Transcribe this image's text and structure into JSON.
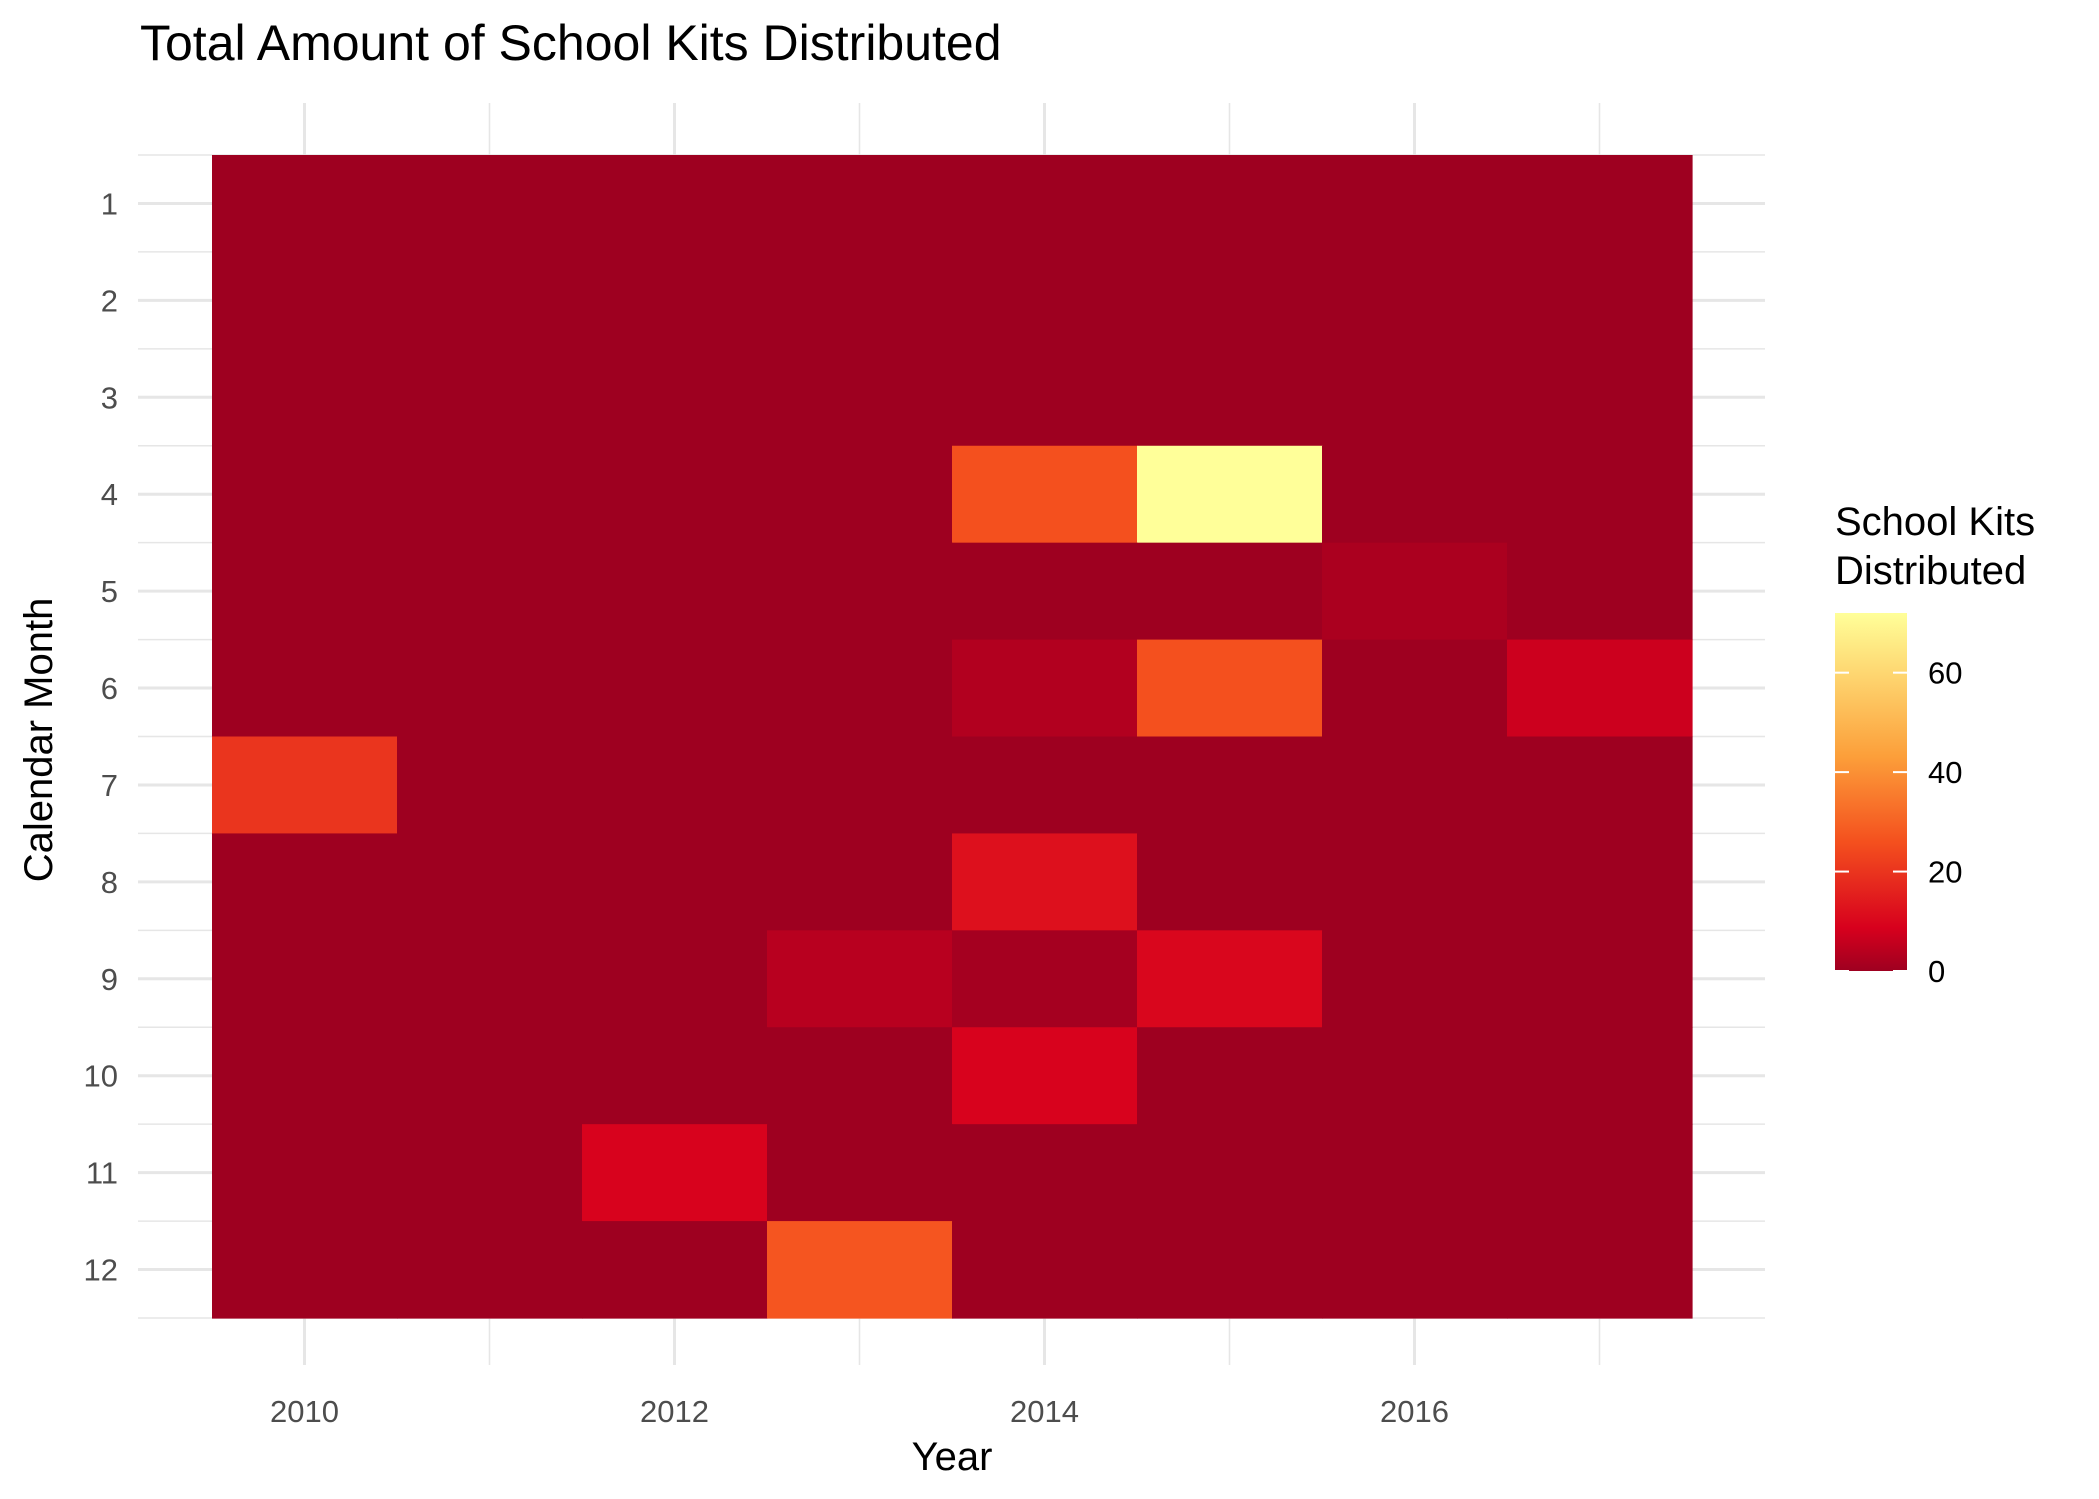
{
  "chart_data": {
    "type": "heatmap",
    "title": "Total Amount of School Kits Distributed",
    "xlabel": "Year",
    "ylabel": "Calendar Month",
    "x_ticks": [
      "2010",
      "2012",
      "2014",
      "2016"
    ],
    "x_tick_values": [
      2010,
      2012,
      2014,
      2016
    ],
    "years": [
      2010,
      2011,
      2012,
      2013,
      2014,
      2015,
      2016,
      2017
    ],
    "months": [
      1,
      2,
      3,
      4,
      5,
      6,
      7,
      8,
      9,
      10,
      11,
      12
    ],
    "y_ticks": [
      "1",
      "2",
      "3",
      "4",
      "5",
      "6",
      "7",
      "8",
      "9",
      "10",
      "11",
      "12"
    ],
    "xlim": [
      2009.5,
      2017.5
    ],
    "ylim": [
      0.5,
      12.5
    ],
    "y_reversed": true,
    "grid": true,
    "values": [
      [
        0,
        0,
        0,
        0,
        0,
        0,
        0,
        0
      ],
      [
        0,
        0,
        0,
        0,
        0,
        0,
        0,
        0
      ],
      [
        0,
        0,
        0,
        0,
        0,
        0,
        0,
        0
      ],
      [
        0,
        0,
        0,
        0,
        26,
        72,
        0,
        0
      ],
      [
        0,
        0,
        0,
        0,
        0,
        0,
        2,
        0
      ],
      [
        0,
        0,
        0,
        0,
        3,
        26,
        0,
        7
      ],
      [
        20,
        0,
        0,
        0,
        0,
        0,
        0,
        0
      ],
      [
        0,
        0,
        0,
        0,
        12,
        0,
        0,
        0
      ],
      [
        0,
        0,
        0,
        4,
        1,
        10,
        0,
        0
      ],
      [
        0,
        0,
        0,
        0,
        9,
        0,
        0,
        0
      ],
      [
        0,
        0,
        9,
        0,
        0,
        0,
        0,
        0
      ],
      [
        0,
        0,
        0,
        27,
        0,
        0,
        0,
        0
      ]
    ],
    "legend": {
      "title_lines": [
        "School Kits",
        "Distributed"
      ],
      "ticks": [
        "0",
        "20",
        "40",
        "60"
      ],
      "tick_values": [
        0,
        20,
        40,
        60
      ],
      "range": [
        0,
        72
      ],
      "placement": "right"
    },
    "colors": {
      "low": "#9e0020",
      "mid_low": "#d7001d",
      "mid": "#f4501e",
      "mid_high": "#fc9f3a",
      "high": "#ffff99"
    }
  }
}
